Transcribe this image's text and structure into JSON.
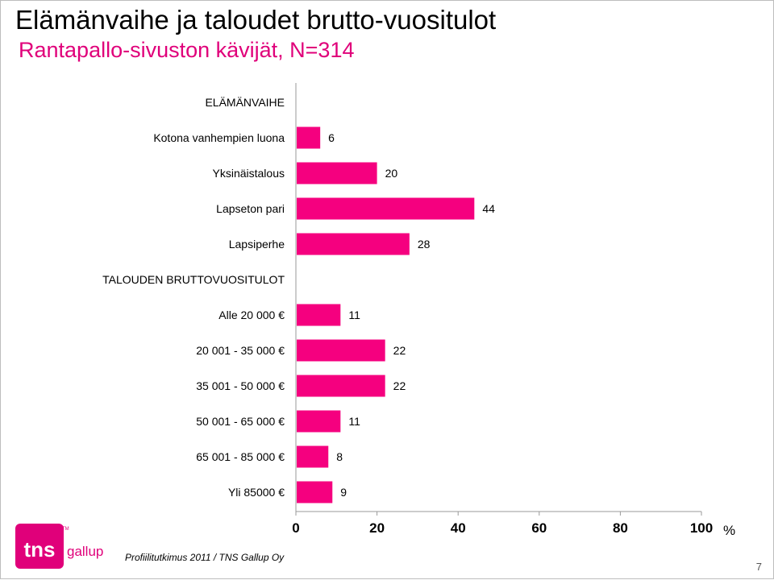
{
  "slide": {
    "title": "Elämänvaihe ja taloudet brutto-vuositulot",
    "subtitle": "Rantapallo-sivuston kävijät, N=314",
    "footer": "Profiilitutkimus 2011 / TNS Gallup Oy",
    "page_number": "7",
    "logo_text": "tns",
    "logo_subtext": "gallup",
    "logo_tm": "TM"
  },
  "colors": {
    "bar": "#f5007f",
    "subtitle": "#e0007a",
    "logo": "#e0007a"
  },
  "chart_data": {
    "type": "bar",
    "orientation": "horizontal",
    "groups": [
      {
        "heading": "ELÄMÄNVAIHE",
        "categories": [
          "Kotona vanhempien luona",
          "Yksinäistalous",
          "Lapseton pari",
          "Lapsiperhe"
        ],
        "values": [
          6,
          20,
          44,
          28
        ]
      },
      {
        "heading": "TALOUDEN BRUTTOVUOSITULOT",
        "categories": [
          "Alle 20 000 €",
          "20 001 - 35 000 €",
          "35 001 - 50 000 €",
          "50 001 - 65 000 €",
          "65 001 - 85 000 €",
          "Yli 85000 €"
        ],
        "values": [
          11,
          22,
          22,
          11,
          8,
          9
        ]
      }
    ],
    "xlim": [
      0,
      100
    ],
    "xticks": [
      0,
      20,
      40,
      60,
      80,
      100
    ],
    "xunit": "%",
    "grid": false,
    "data_labels": true
  }
}
